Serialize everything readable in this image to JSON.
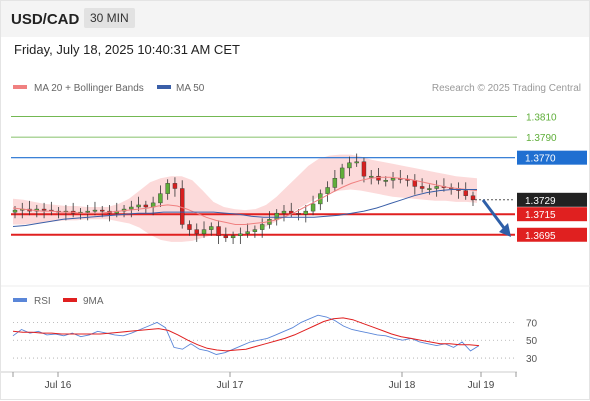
{
  "header": {
    "symbol": "USD/CAD",
    "interval": "30 MIN"
  },
  "timestamp": "Friday, July 18, 2025 10:40:31 AM CET",
  "legend": {
    "ma20": "MA 20 + Bollinger Bands",
    "ma50": "MA 50",
    "credit": "Research © 2025 Trading Central"
  },
  "rsi_legend": {
    "rsi": "RSI",
    "ma9": "9MA"
  },
  "colors": {
    "candle_up": "#5fae3a",
    "candle_down": "#d71f1f",
    "bollinger_fill": "#fbd3d3",
    "ma20": "#f08080",
    "ma50": "#3a5fa8",
    "resistance": "#5fae3a",
    "pivot": "#1f6fd1",
    "support": "#e02020",
    "rsi": "#5a86d8",
    "rsi_ma": "#e02020",
    "arrow": "#2e5fa8"
  },
  "chart_data": [
    {
      "type": "candlestick",
      "x_axis": {
        "ticks": [
          "Jul 16",
          "Jul 17",
          "Jul 18",
          "Jul 19"
        ]
      },
      "y_range": [
        1.365,
        1.383
      ],
      "levels": [
        {
          "value": 1.381,
          "label": "1.3810",
          "kind": "resistance"
        },
        {
          "value": 1.379,
          "label": "1.3790",
          "kind": "resistance"
        },
        {
          "value": 1.377,
          "label": "1.3770",
          "kind": "pivot"
        },
        {
          "value": 1.3715,
          "label": "1.3715",
          "kind": "support"
        },
        {
          "value": 1.3695,
          "label": "1.3695",
          "kind": "support"
        }
      ],
      "current_price": {
        "value": 1.3729,
        "label": "1.3729"
      },
      "close_series": [
        1.3719,
        1.372,
        1.3718,
        1.372,
        1.3719,
        1.3718,
        1.3717,
        1.3718,
        1.3716,
        1.3717,
        1.3718,
        1.3719,
        1.3718,
        1.3716,
        1.3718,
        1.372,
        1.3722,
        1.3724,
        1.3722,
        1.3726,
        1.3735,
        1.3745,
        1.374,
        1.3705,
        1.37,
        1.3696,
        1.37,
        1.3703,
        1.3694,
        1.3692,
        1.3694,
        1.3696,
        1.3698,
        1.37,
        1.3705,
        1.371,
        1.3716,
        1.3718,
        1.3716,
        1.3715,
        1.3718,
        1.3725,
        1.3735,
        1.3741,
        1.375,
        1.376,
        1.3765,
        1.3766,
        1.3752,
        1.3752,
        1.3748,
        1.3748,
        1.375,
        1.3749,
        1.3748,
        1.3742,
        1.374,
        1.374,
        1.3742,
        1.3741,
        1.374,
        1.3738,
        1.3733,
        1.3729
      ],
      "ma20": [
        1.3721,
        1.372,
        1.3719,
        1.3718,
        1.3718,
        1.3717,
        1.3717,
        1.3716,
        1.3716,
        1.3716,
        1.3717,
        1.3718,
        1.3719,
        1.372,
        1.3721,
        1.3723,
        1.3724,
        1.3723,
        1.372,
        1.3716,
        1.3712,
        1.3709,
        1.3707,
        1.3705,
        1.3705,
        1.3706,
        1.3707,
        1.3709,
        1.3712,
        1.3716,
        1.3721,
        1.3726,
        1.3731,
        1.3736,
        1.3741,
        1.3745,
        1.3748,
        1.375,
        1.3751,
        1.3751,
        1.375,
        1.3749,
        1.3747,
        1.3745,
        1.3743,
        1.3741,
        1.374,
        1.3739,
        1.3738
      ],
      "bollinger_upper": [
        1.373,
        1.3729,
        1.3727,
        1.3725,
        1.3724,
        1.3723,
        1.3723,
        1.3722,
        1.3722,
        1.3722,
        1.3725,
        1.373,
        1.3738,
        1.3746,
        1.375,
        1.3752,
        1.3752,
        1.3748,
        1.3738,
        1.3727,
        1.3722,
        1.372,
        1.3719,
        1.372,
        1.3724,
        1.3732,
        1.3742,
        1.3752,
        1.3762,
        1.3769,
        1.3772,
        1.3773,
        1.3773,
        1.3771,
        1.3768,
        1.3766,
        1.3764,
        1.3762,
        1.376,
        1.3758,
        1.3756,
        1.3754,
        1.3752,
        1.3751,
        1.375
      ],
      "bollinger_lower": [
        1.3705,
        1.3705,
        1.3706,
        1.3707,
        1.3708,
        1.3709,
        1.3709,
        1.371,
        1.371,
        1.371,
        1.3708,
        1.3706,
        1.3702,
        1.3695,
        1.369,
        1.3688,
        1.3688,
        1.3689,
        1.3692,
        1.3695,
        1.3697,
        1.3697,
        1.3697,
        1.3699,
        1.3703,
        1.3708,
        1.3714,
        1.372,
        1.3726,
        1.3732,
        1.3736,
        1.3738,
        1.3739,
        1.3738,
        1.3736,
        1.3734,
        1.3732,
        1.3731,
        1.373,
        1.3729,
        1.3728,
        1.3728,
        1.3727,
        1.3727,
        1.3726
      ],
      "ma50": [
        1.3703,
        1.3704,
        1.3706,
        1.3708,
        1.371,
        1.3711,
        1.3712,
        1.3713,
        1.3714,
        1.3715,
        1.3716,
        1.3716,
        1.3717,
        1.3717,
        1.3717,
        1.3717,
        1.3717,
        1.3716,
        1.3715,
        1.3713,
        1.3712,
        1.3712,
        1.3712,
        1.3712,
        1.3712,
        1.3713,
        1.3714,
        1.3716,
        1.3718,
        1.3721,
        1.3725,
        1.3729,
        1.3733,
        1.3736,
        1.3738,
        1.3739,
        1.3739,
        1.3739
      ]
    },
    {
      "type": "line",
      "title": "RSI",
      "y_ticks": [
        "70",
        "50",
        "30"
      ],
      "y_range": [
        20,
        85
      ],
      "series": [
        {
          "name": "RSI",
          "values": [
            55,
            62,
            58,
            60,
            56,
            57,
            55,
            58,
            54,
            56,
            60,
            58,
            56,
            55,
            58,
            62,
            66,
            70,
            64,
            42,
            40,
            46,
            40,
            38,
            34,
            36,
            40,
            44,
            48,
            50,
            52,
            56,
            60,
            64,
            70,
            74,
            78,
            76,
            72,
            66,
            62,
            60,
            58,
            56,
            55,
            52,
            50,
            52,
            48,
            46,
            44,
            46,
            42,
            48,
            38,
            44
          ]
        },
        {
          "name": "9MA",
          "values": [
            60,
            59,
            59,
            58,
            58,
            57,
            57,
            57,
            57,
            57,
            58,
            59,
            60,
            61,
            62,
            63,
            61,
            56,
            50,
            45,
            41,
            39,
            38,
            39,
            40,
            43,
            46,
            49,
            52,
            56,
            61,
            66,
            71,
            74,
            75,
            73,
            69,
            65,
            61,
            57,
            54,
            52,
            50,
            48,
            46,
            46,
            45,
            45,
            44
          ]
        }
      ]
    }
  ]
}
